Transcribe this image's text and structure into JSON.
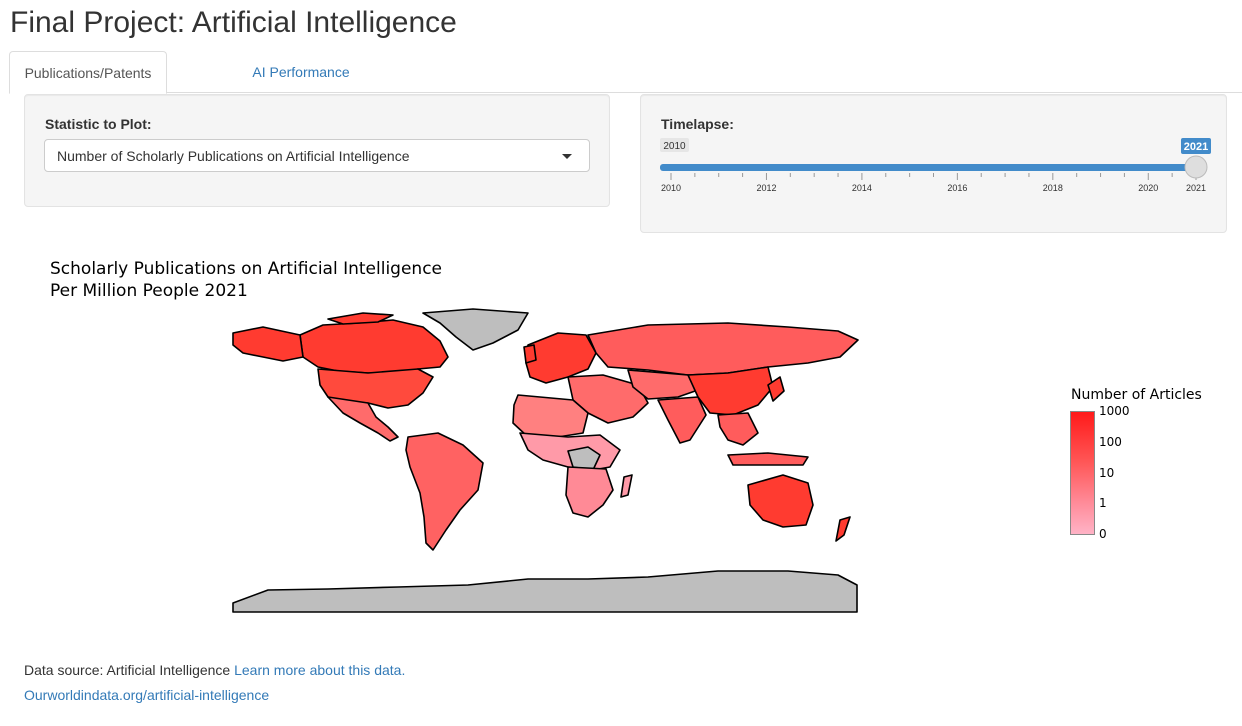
{
  "page": {
    "title": "Final Project: Artificial Intelligence"
  },
  "tabs": [
    {
      "label": "Publications/Patents",
      "active": true
    },
    {
      "label": "AI Performance",
      "active": false
    }
  ],
  "statistic_control": {
    "label": "Statistic to Plot:",
    "selected": "Number of Scholarly Publications on Artificial Intelligence"
  },
  "timelapse": {
    "label": "Timelapse:",
    "min": 2010,
    "max": 2021,
    "value": 2021,
    "min_label": "2010",
    "value_label": "2021",
    "ticks": [
      "2010",
      "2012",
      "2014",
      "2016",
      "2018",
      "2020",
      "2021"
    ]
  },
  "map": {
    "title_line1": "Scholarly Publications on Artificial Intelligence",
    "title_line2": "Per Million People 2021",
    "legend_title": "Number of Articles",
    "legend_ticks": [
      "1000",
      "100",
      "10",
      "1",
      "0"
    ],
    "colors": {
      "high": "#ff1a1a",
      "mid": "#ff5c5c",
      "low": "#ffb3c6",
      "no_data": "#bebebe"
    }
  },
  "footer": {
    "source_prefix": "Data source: Artificial Intelligence",
    "learn_more": "Learn more about this data.",
    "link": "Ourworldindata.org/artificial-intelligence"
  }
}
